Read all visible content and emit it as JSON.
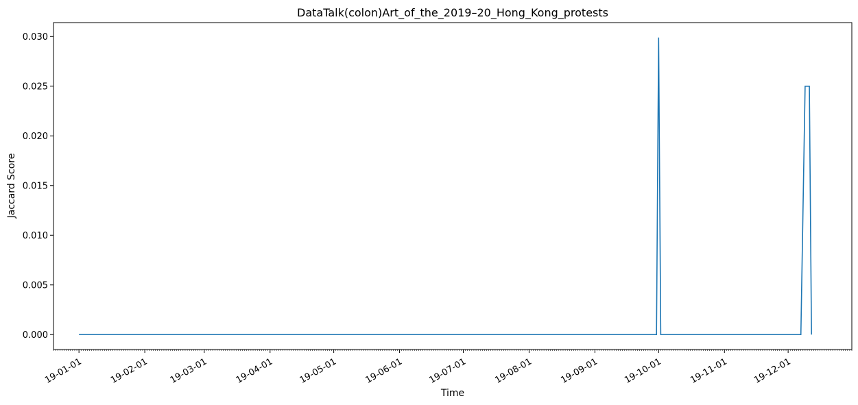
{
  "chart_data": {
    "type": "line",
    "title": "DataTalk(colon)Art_of_the_2019–20_Hong_Kong_protests",
    "xlabel": "Time",
    "ylabel": "Jaccard Score",
    "x_axis_type": "date",
    "xlim": [
      "2018-12-20",
      "2019-12-31"
    ],
    "ylim": [
      -0.0015,
      0.0314
    ],
    "y_ticks": [
      0.0,
      0.005,
      0.01,
      0.015,
      0.02,
      0.025,
      0.03
    ],
    "y_tick_labels": [
      "0.000",
      "0.005",
      "0.010",
      "0.015",
      "0.020",
      "0.025",
      "0.030"
    ],
    "x_ticks": [
      "2019-01-01",
      "2019-02-01",
      "2019-03-01",
      "2019-04-01",
      "2019-05-01",
      "2019-06-01",
      "2019-07-01",
      "2019-08-01",
      "2019-09-01",
      "2019-10-01",
      "2019-11-01",
      "2019-12-01"
    ],
    "x_tick_labels": [
      "19-01-01",
      "19-02-01",
      "19-03-01",
      "19-04-01",
      "19-05-01",
      "19-06-01",
      "19-07-01",
      "19-08-01",
      "19-09-01",
      "19-10-01",
      "19-11-01",
      "19-12-01"
    ],
    "minor_x_ticks": "daily",
    "grid": false,
    "legend": "none",
    "series": [
      {
        "color": "#1f77b4",
        "points": [
          [
            "2019-01-01",
            0.0
          ],
          [
            "2019-09-30",
            0.0
          ],
          [
            "2019-10-01",
            0.0299
          ],
          [
            "2019-10-02",
            0.0
          ],
          [
            "2019-12-07",
            0.0
          ],
          [
            "2019-12-09",
            0.025
          ],
          [
            "2019-12-11",
            0.025
          ],
          [
            "2019-12-12",
            0.0
          ]
        ]
      }
    ]
  }
}
